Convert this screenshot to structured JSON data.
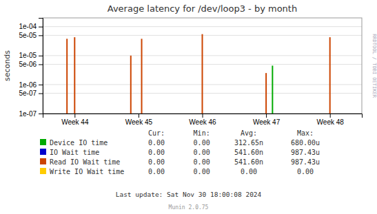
{
  "chart_data": {
    "type": "spike",
    "title": "Average latency for /dev/loop3 - by month",
    "y_label": "seconds",
    "log": "y",
    "grid": "y",
    "xlim": [
      -0.5,
      4.5
    ],
    "xticks": [
      {
        "value": 0,
        "label": "Week 44"
      },
      {
        "value": 1,
        "label": "Week 45"
      },
      {
        "value": 2,
        "label": "Week 46"
      },
      {
        "value": 3,
        "label": "Week 47"
      },
      {
        "value": 4,
        "label": "Week 48"
      }
    ],
    "ylim": [
      1e-07,
      0.0002
    ],
    "yticks": [
      {
        "value": 1e-07,
        "label": "1e-07"
      },
      {
        "value": 5e-07,
        "label": "5e-07"
      },
      {
        "value": 1e-06,
        "label": "1e-06"
      },
      {
        "value": 5e-06,
        "label": "5e-06"
      },
      {
        "value": 1e-05,
        "label": "1e-05"
      },
      {
        "value": 5e-05,
        "label": "5e-05"
      },
      {
        "value": 0.0001,
        "label": "1e-04"
      }
    ],
    "stat_columns": [
      "Cur:",
      "Min:",
      "Avg:",
      "Max:"
    ],
    "series": [
      {
        "name": "Device IO time",
        "color": "#00aa00",
        "x": [
          3.1
        ],
        "values": [
          4.5e-06
        ],
        "stats": [
          "0.00",
          "0.00",
          "312.65n",
          "680.00u"
        ]
      },
      {
        "name": "IO Wait time",
        "color": "#0000cc",
        "x": [],
        "values": [],
        "stats": [
          "0.00",
          "0.00",
          "541.60n",
          "987.43u"
        ]
      },
      {
        "name": "Read IO Wait time",
        "color": "#cc4400",
        "x": [
          -0.12,
          0.0,
          0.88,
          1.05,
          2.0,
          3.0,
          4.0
        ],
        "values": [
          3.8e-05,
          4.3e-05,
          1e-05,
          3.8e-05,
          5.5e-05,
          2.5e-06,
          4.3e-05
        ],
        "stats": [
          "0.00",
          "0.00",
          "541.60n",
          "987.43u"
        ]
      },
      {
        "name": "Write IO Wait time",
        "color": "#ffcc00",
        "x": [],
        "values": [],
        "stats": [
          "0.00",
          "0.00",
          "0.00",
          "0.00"
        ]
      }
    ],
    "annotations": [
      "Last update: Sat Nov 30 18:00:08 2024",
      "Munin 2.0.75",
      "RRDTOOL / TOBI OETIKER"
    ]
  }
}
